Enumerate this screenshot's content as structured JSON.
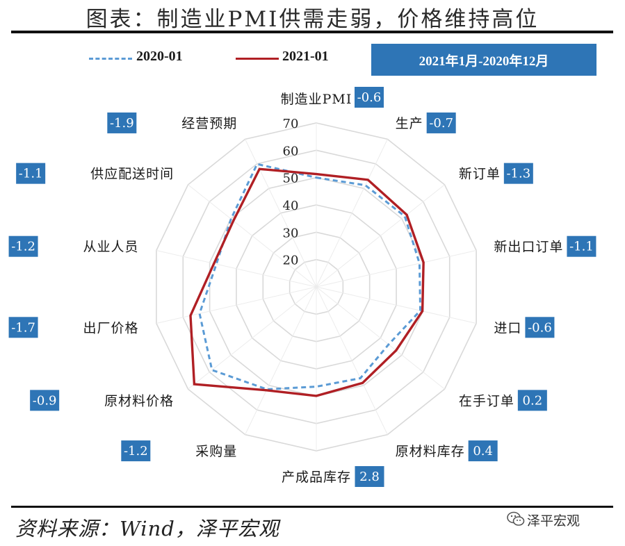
{
  "header": {
    "title": "图表：制造业PMI供需走弱，价格维持高位"
  },
  "legend": {
    "period_label": "2021年1月-2020年12月"
  },
  "footer": {
    "source": "资料来源：Wind，泽平宏观",
    "watermark": "泽平宏观"
  },
  "colors": {
    "series_2020": "#5b9bd5",
    "series_2021": "#b01f24",
    "diff_box": "#2e75b6",
    "grid": "#d9d9d9"
  },
  "chart_data": {
    "type": "radar",
    "title": "",
    "axes": [
      "制造业PMI",
      "生产",
      "新订单",
      "新出口订单",
      "进口",
      "在手订单",
      "原材料库存",
      "产成品库存",
      "采购量",
      "原材料价格",
      "出厂价格",
      "从业人员",
      "供应配送时间",
      "经营预期"
    ],
    "rlim": [
      10,
      70
    ],
    "ticks": [
      20,
      30,
      40,
      50,
      60,
      70
    ],
    "grid": true,
    "legend_position": "top-left",
    "series": [
      {
        "name": "2020-01",
        "style": "dashed",
        "values": [
          50.0,
          51.3,
          51.4,
          48.7,
          49.0,
          43.8,
          47.1,
          46.5,
          51.6,
          58.8,
          53.8,
          47.5,
          49.9,
          59.9
        ]
      },
      {
        "name": "2021-01",
        "style": "solid",
        "values": [
          51.3,
          53.5,
          52.3,
          50.2,
          49.8,
          47.3,
          49.0,
          49.9,
          52.0,
          67.1,
          57.2,
          48.4,
          48.8,
          57.9
        ]
      }
    ],
    "differences": [
      "-0.6",
      "-0.7",
      "-1.3",
      "-1.1",
      "-0.6",
      "0.2",
      "0.4",
      "2.8",
      "-1.2",
      "-0.9",
      "-1.7",
      "-1.2",
      "-1.1",
      "-1.9"
    ]
  }
}
